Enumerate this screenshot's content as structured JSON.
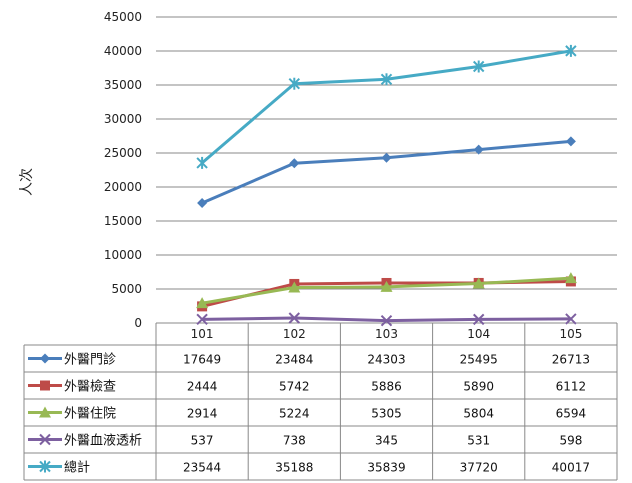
{
  "chart_data": {
    "type": "line",
    "categories": [
      "101",
      "102",
      "103",
      "104",
      "105"
    ],
    "ylabel": "人次",
    "xlabel": "",
    "title": "",
    "ylim": [
      0,
      45000
    ],
    "yticks": [
      "0",
      "5000",
      "10000",
      "15000",
      "20000",
      "25000",
      "30000",
      "35000",
      "40000",
      "45000"
    ],
    "grid": true,
    "legend": "data-table-left",
    "series": [
      {
        "name": "外醫門診",
        "values": [
          17649,
          23484,
          24303,
          25495,
          26713
        ],
        "labels": [
          "17649",
          "23484",
          "24303",
          "25495",
          "26713"
        ],
        "color": "#4a7ebb",
        "marker": "diamond"
      },
      {
        "name": "外醫檢查",
        "values": [
          2444,
          5742,
          5886,
          5890,
          6112
        ],
        "labels": [
          "2444",
          "5742",
          "5886",
          "5890",
          "6112"
        ],
        "color": "#be4b48",
        "marker": "square"
      },
      {
        "name": "外醫住院",
        "values": [
          2914,
          5224,
          5305,
          5804,
          6594
        ],
        "labels": [
          "2914",
          "5224",
          "5305",
          "5804",
          "6594"
        ],
        "color": "#98b954",
        "marker": "triangle"
      },
      {
        "name": "外醫血液透析",
        "values": [
          537,
          738,
          345,
          531,
          598
        ],
        "labels": [
          "537",
          "738",
          "345",
          "531",
          "598"
        ],
        "color": "#7d60a0",
        "marker": "x"
      },
      {
        "name": "總計",
        "values": [
          23544,
          35188,
          35839,
          37720,
          40017
        ],
        "labels": [
          "23544",
          "35188",
          "35839",
          "37720",
          "40017"
        ],
        "color": "#46aac5",
        "marker": "star"
      }
    ]
  }
}
